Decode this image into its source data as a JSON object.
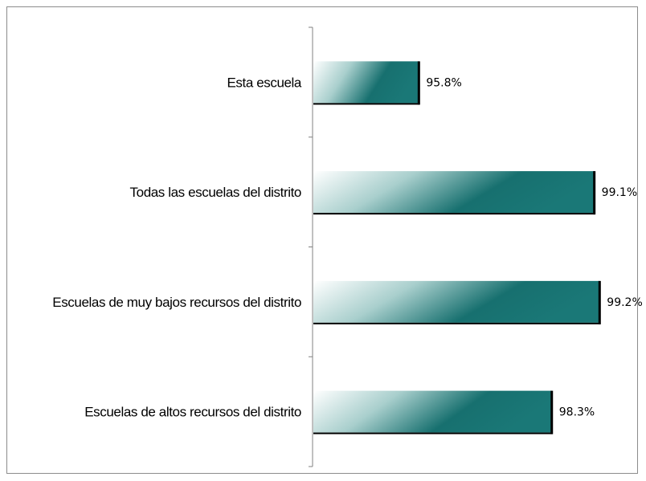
{
  "chart_data": {
    "type": "bar",
    "orientation": "horizontal",
    "categories": [
      "Esta escuela",
      "Todas las escuelas del distrito",
      "Escuelas de muy bajos recursos del distrito",
      "Escuelas de altos recursos del distrito"
    ],
    "values": [
      95.8,
      99.1,
      99.2,
      98.3
    ],
    "value_labels": [
      "95.8%",
      "99.1%",
      "99.2%",
      "98.3%"
    ],
    "xlim": [
      93.8,
      99.8
    ],
    "grid": false,
    "colors": {
      "bar_dark": "#17706f",
      "bar_light": "#ffffff",
      "axis": "#808080",
      "shadow": "#000000"
    }
  }
}
